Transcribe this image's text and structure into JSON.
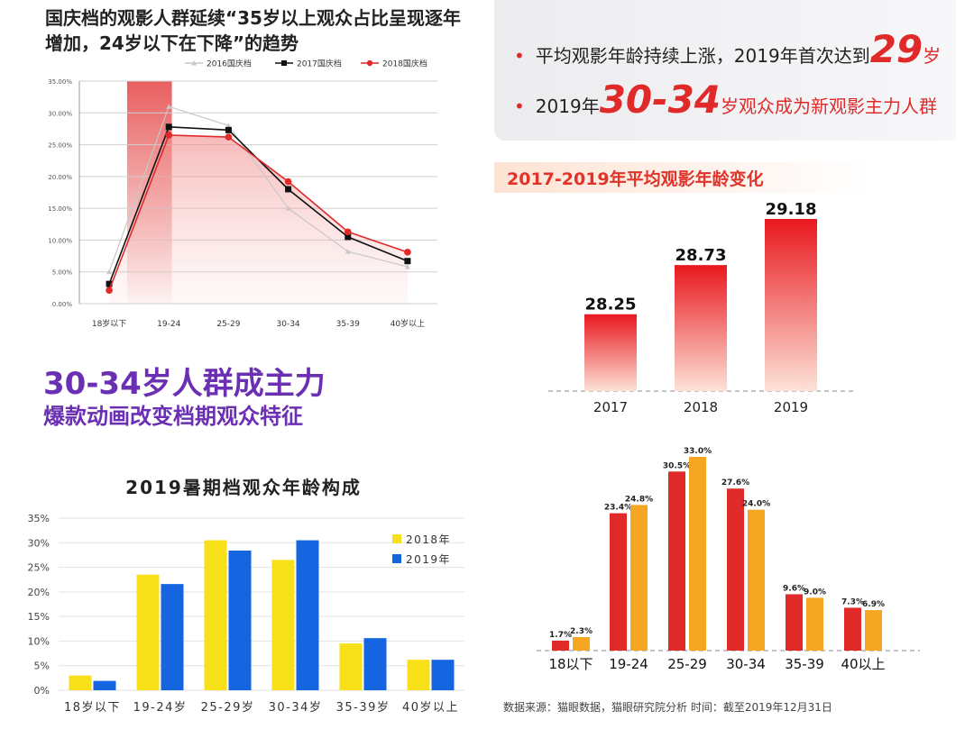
{
  "top_left": {
    "title": "国庆档的观影人群延续“35岁以上观众占比呈现逐年增加，24岁以下在下降”的趋势"
  },
  "middle_left": {
    "title": "30-34岁人群成主力",
    "subtitle": "爆款动画改变档期观众特征"
  },
  "top_right": {
    "bullet1_pre": "平均观影年龄持续上涨，2019年首次达到",
    "bullet1_num": "29",
    "bullet1_post": "岁",
    "bullet2_pre": "2019年",
    "bullet2_num": "30-34",
    "bullet2_post": "岁观众成为新观影主力人群",
    "ribbon": "2017-2019年平均观影年龄变化"
  },
  "source": "数据来源：猫眼数据，猫眼研究院分析   时间：截至2019年12月31日",
  "colors": {
    "red": "#e02a2a",
    "orange": "#f5a623",
    "yellow": "#f7e017",
    "blue": "#1565e0",
    "purple": "#6b2fb3"
  },
  "chart_data": [
    {
      "id": "national_day",
      "type": "line",
      "categories": [
        "18岁以下",
        "19-24",
        "25-29",
        "30-34",
        "35-39",
        "40岁以上"
      ],
      "yticks": [
        "0.00%",
        "5.00%",
        "10.00%",
        "15.00%",
        "20.00%",
        "25.00%",
        "30.00%",
        "35.00%"
      ],
      "ylim": [
        0,
        35
      ],
      "series": [
        {
          "name": "2016国庆档",
          "color": "#c8c8c8",
          "values": [
            5.0,
            31.0,
            28.0,
            15.0,
            8.2,
            5.8
          ]
        },
        {
          "name": "2017国庆档",
          "color": "#111111",
          "values": [
            3.1,
            27.8,
            27.3,
            18.0,
            10.5,
            6.7
          ]
        },
        {
          "name": "2018国庆档",
          "color": "#e02a2a",
          "values": [
            2.1,
            26.5,
            26.2,
            19.2,
            11.3,
            8.1
          ]
        }
      ],
      "legend": "top"
    },
    {
      "id": "avg_age",
      "type": "bar",
      "categories": [
        "2017",
        "2018",
        "2019"
      ],
      "values": [
        28.25,
        28.73,
        29.18
      ],
      "labels": [
        "28.25",
        "28.73",
        "29.18"
      ]
    },
    {
      "id": "summer",
      "type": "bar",
      "title": "2019暑期档观众年龄构成",
      "categories": [
        "18岁以下",
        "19-24岁",
        "25-29岁",
        "30-34岁",
        "35-39岁",
        "40岁以上"
      ],
      "yticks": [
        "0%",
        "5%",
        "10%",
        "15%",
        "20%",
        "25%",
        "30%",
        "35%"
      ],
      "ylim": [
        0,
        35
      ],
      "series": [
        {
          "name": "2018年",
          "color": "#f7e017",
          "values": [
            3.0,
            23.5,
            30.5,
            26.5,
            9.5,
            6.2
          ]
        },
        {
          "name": "2019年",
          "color": "#1565e0",
          "values": [
            1.9,
            21.6,
            28.4,
            30.5,
            10.6,
            6.2
          ]
        }
      ],
      "legend": "right"
    },
    {
      "id": "age_dist",
      "type": "bar",
      "categories": [
        "18以下",
        "19-24",
        "25-29",
        "30-34",
        "35-39",
        "40以上"
      ],
      "series": [
        {
          "values": [
            1.7,
            23.4,
            30.5,
            27.6,
            9.6,
            7.3
          ],
          "labels": [
            "1.7%",
            "23.4%",
            "30.5%",
            "27.6%",
            "9.6%",
            "7.3%"
          ],
          "color": "#e02a2a"
        },
        {
          "values": [
            2.3,
            24.8,
            33.0,
            24.0,
            9.0,
            6.9
          ],
          "labels": [
            "2.3%",
            "24.8%",
            "33.0%",
            "24.0%",
            "9.0%",
            "6.9%"
          ],
          "color": "#f5a623"
        }
      ]
    }
  ]
}
